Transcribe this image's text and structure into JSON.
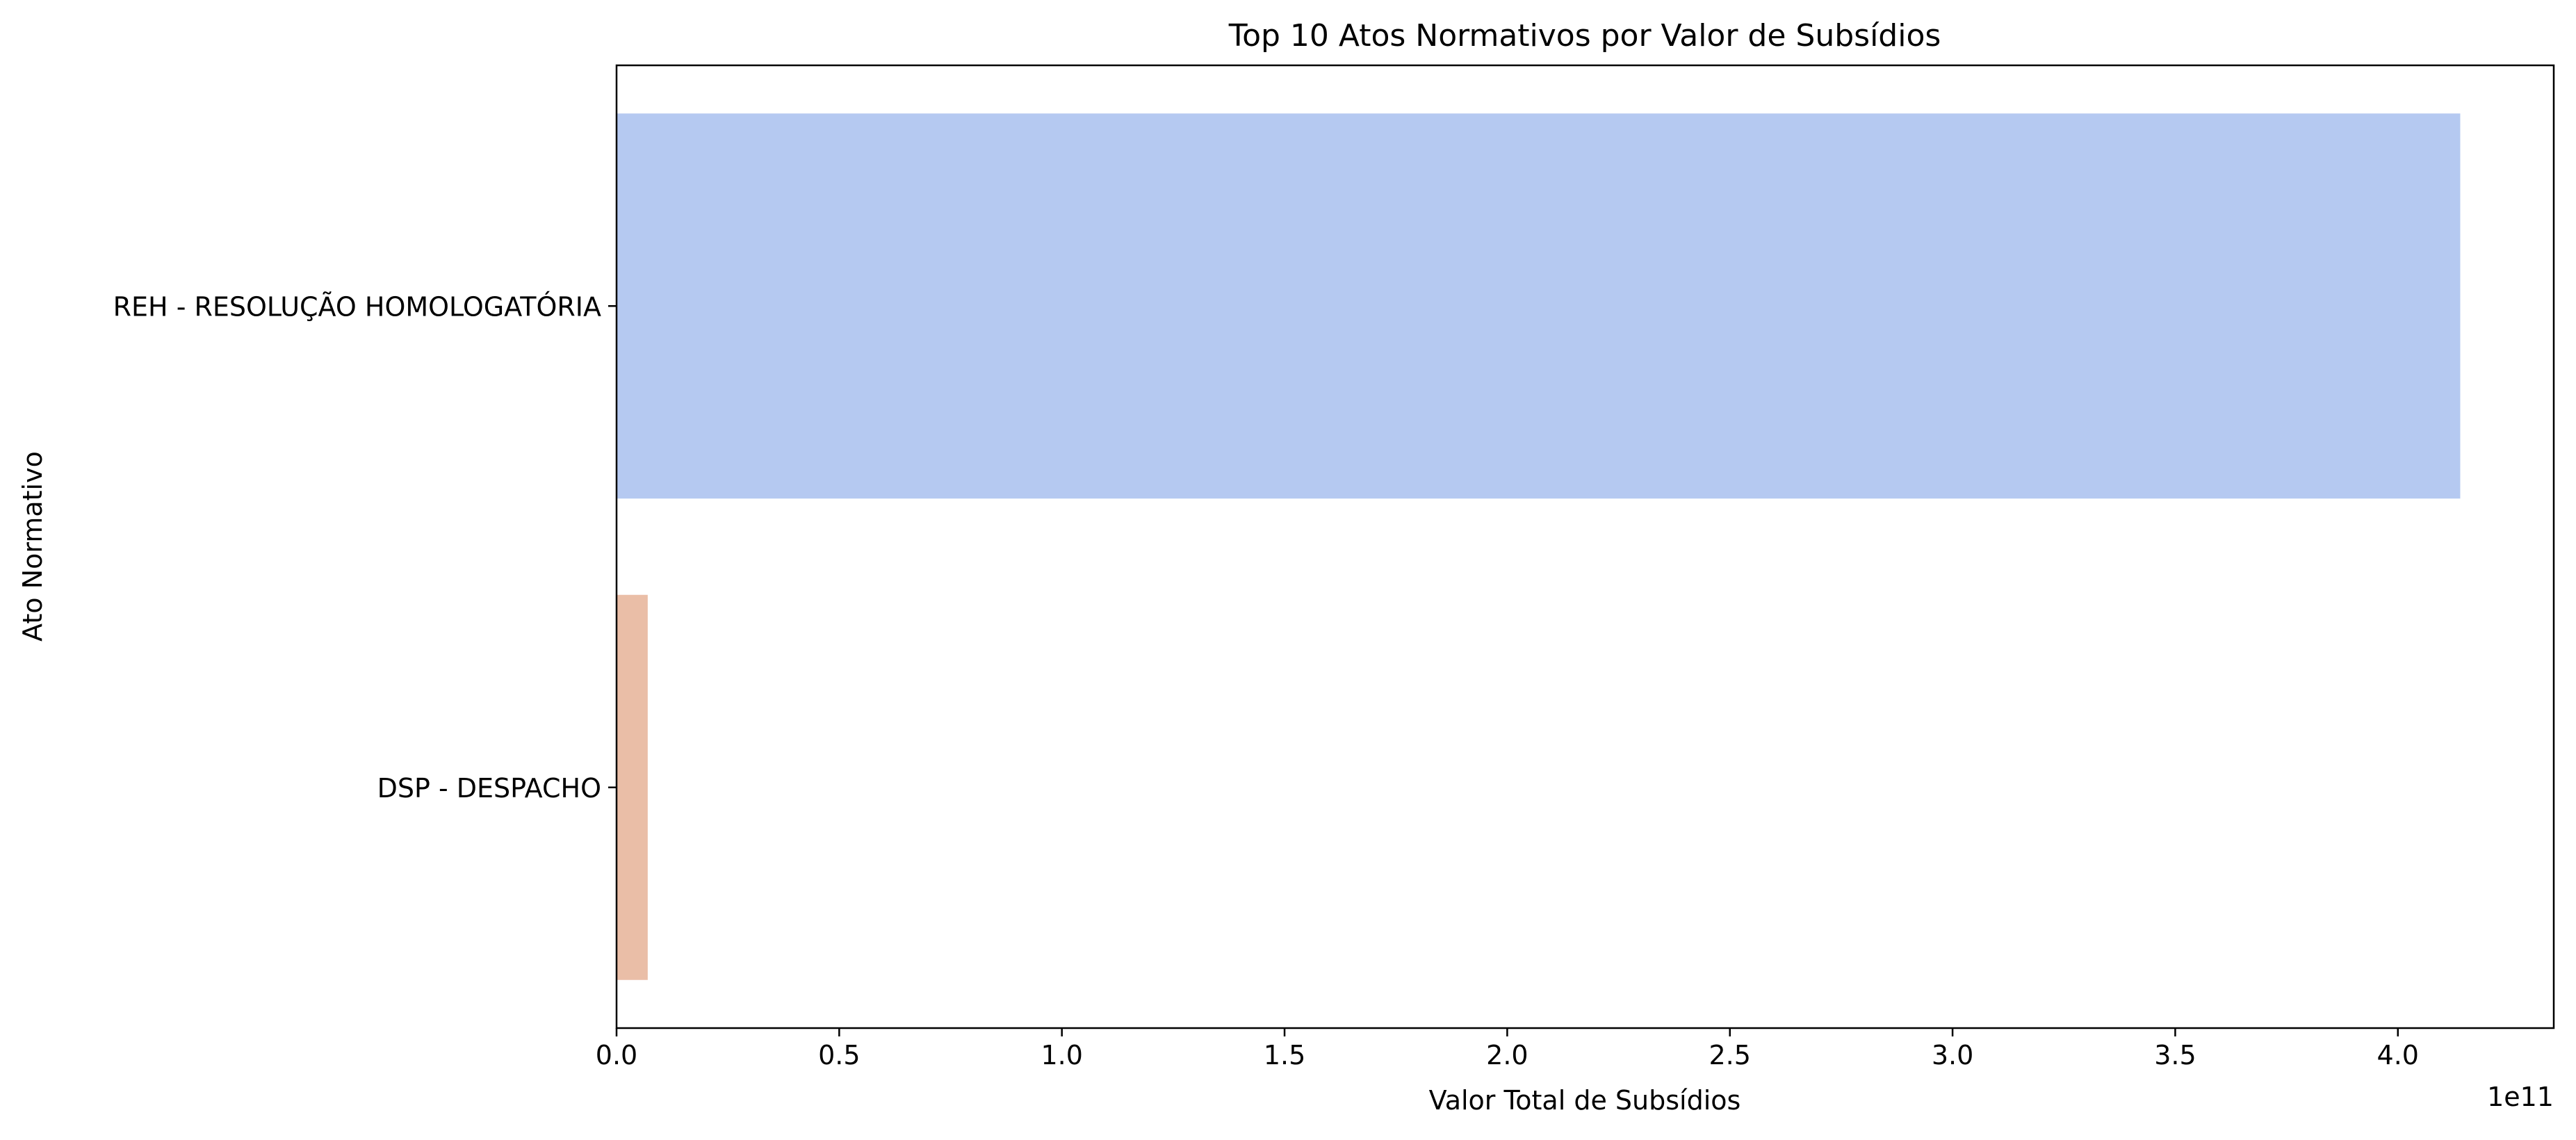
{
  "chart_data": {
    "type": "bar",
    "orientation": "horizontal",
    "title": "Top 10 Atos Normativos por Valor de Subsídios",
    "xlabel": "Valor Total de Subsídios",
    "ylabel": "Ato Normativo",
    "x_offset_label": "1e11",
    "categories": [
      "REH - RESOLUÇÃO HOMOLOGATÓRIA",
      "DSP - DESPACHO"
    ],
    "values": [
      414000000000,
      7000000000
    ],
    "colors": [
      "#b5c9f1",
      "#eabea7"
    ],
    "xlim": [
      0,
      435000000000
    ],
    "xticks": [
      0,
      50000000000,
      100000000000,
      150000000000,
      200000000000,
      250000000000,
      300000000000,
      350000000000,
      400000000000
    ],
    "xtick_labels": [
      "0.0",
      "0.5",
      "1.0",
      "1.5",
      "2.0",
      "2.5",
      "3.0",
      "3.5",
      "4.0"
    ],
    "grid": false,
    "legend": "none"
  }
}
